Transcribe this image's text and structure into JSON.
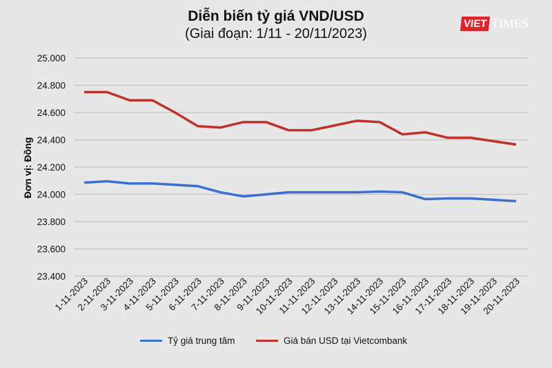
{
  "chart_data": {
    "type": "line",
    "title": "Diễn biến tỷ giá VND/USD",
    "subtitle": "(Giai đoạn: 1/11 - 20/11/2023)",
    "ylabel": "Đơn vị: Đồng",
    "xlabel": "",
    "ylim": [
      23400,
      25000
    ],
    "yticks": [
      "23.400",
      "23.600",
      "23.800",
      "24.000",
      "24.200",
      "24.400",
      "24.600",
      "24.800",
      "25.000"
    ],
    "grid": true,
    "legend": "bottom",
    "categories": [
      "1-11-2023",
      "2-11-2023",
      "3-11-2023",
      "4-11-2023",
      "5-11-2023",
      "6-11-2023",
      "7-11-2023",
      "8-11-2023",
      "9-11-2023",
      "10-11-2023",
      "11-11-2023",
      "12-11-2023",
      "13-11-2023",
      "14-11-2023",
      "15-11-2023",
      "16-11-2023",
      "17-11-2023",
      "18-11-2023",
      "19-11-2023",
      "20-11-2023"
    ],
    "series": [
      {
        "name": "Tỷ giá trung tâm",
        "color": "#3a6fd0",
        "values": [
          24086,
          24096,
          24080,
          24080,
          24070,
          24060,
          24015,
          23985,
          24000,
          24015,
          24015,
          24015,
          24015,
          24020,
          24015,
          23965,
          23970,
          23970,
          23960,
          23950
        ]
      },
      {
        "name": "Giá bán USD tại Vietcombank",
        "color": "#c0302a",
        "values": [
          24750,
          24750,
          24690,
          24690,
          24600,
          24500,
          24490,
          24530,
          24530,
          24470,
          24470,
          24505,
          24540,
          24530,
          24440,
          24455,
          24415,
          24415,
          24390,
          24365
        ]
      }
    ]
  },
  "logo": {
    "text": "VIETTIMES"
  }
}
